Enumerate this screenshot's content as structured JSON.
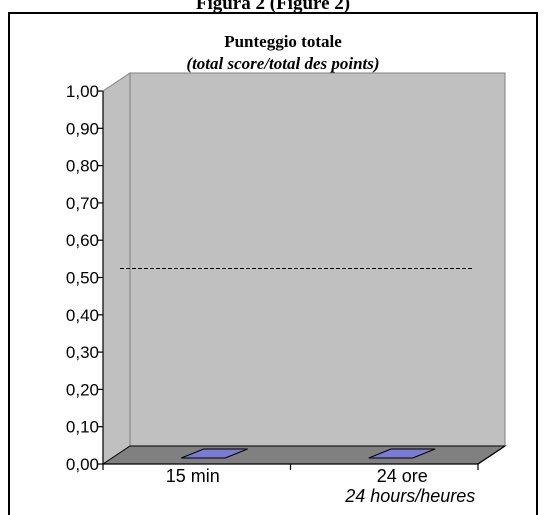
{
  "figure_caption": "Figura 2 (Figure 2)",
  "chart_data": {
    "type": "bar",
    "title": "Punteggio totale",
    "subtitle": "(total score/total des points)",
    "categories": [
      {
        "line1": "15 min",
        "line2": ""
      },
      {
        "line1": "24 ore",
        "line2": "24 hours/heures"
      }
    ],
    "values": [
      0.0,
      0.0
    ],
    "ylim": [
      0,
      1
    ],
    "yticks": [
      "0,00",
      "0,10",
      "0,20",
      "0,30",
      "0,40",
      "0,50",
      "0,60",
      "0,70",
      "0,80",
      "0,90",
      "1,00"
    ],
    "reference_line": 0.5,
    "three_d": true,
    "grid": false,
    "colors": {
      "wall": "#c0c0c0",
      "floor": "#808080",
      "bar": "#7b7bd6",
      "frame": "#000000"
    }
  }
}
